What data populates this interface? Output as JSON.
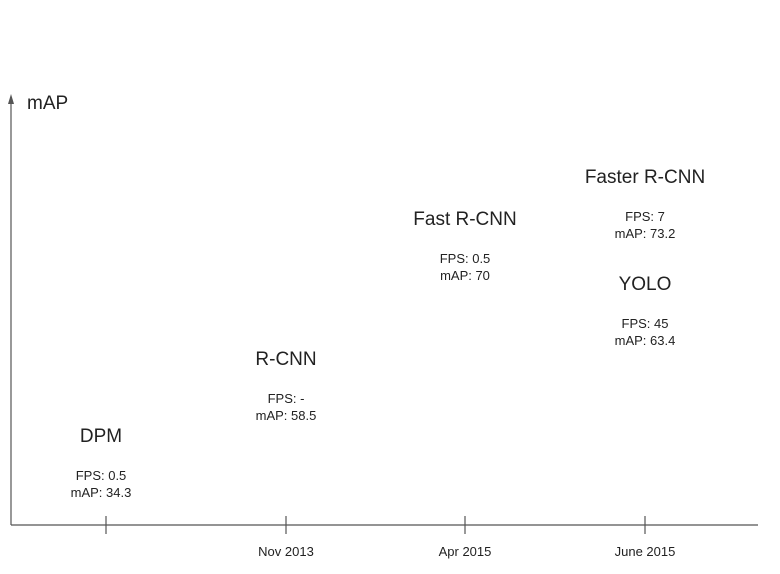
{
  "chart_data": {
    "type": "scatter",
    "title": "",
    "ylabel": "mAP",
    "xlabel": "",
    "x_ticks": [
      "",
      "Nov 2013",
      "Apr 2015",
      "June 2015"
    ],
    "grid": false,
    "legend": "none",
    "points": [
      {
        "name": "DPM",
        "tick_index": 0,
        "fps": "0.5",
        "map": 34.3,
        "fps_text": "FPS: 0.5",
        "map_text": "mAP: 34.3"
      },
      {
        "name": "R-CNN",
        "tick_index": 1,
        "fps": "-",
        "map": 58.5,
        "fps_text": "FPS: -",
        "map_text": "mAP: 58.5"
      },
      {
        "name": "Fast R-CNN",
        "tick_index": 2,
        "fps": "0.5",
        "map": 70,
        "fps_text": "FPS: 0.5",
        "map_text": "mAP: 70"
      },
      {
        "name": "YOLO",
        "tick_index": 3,
        "fps": "45",
        "map": 63.4,
        "fps_text": "FPS: 45",
        "map_text": "mAP: 63.4"
      },
      {
        "name": "Faster R-CNN",
        "tick_index": 3,
        "fps": "7",
        "map": 73.2,
        "fps_text": "FPS: 7",
        "map_text": "mAP: 73.2"
      }
    ],
    "colors": {
      "axis": "#555555",
      "text": "#222222"
    }
  }
}
